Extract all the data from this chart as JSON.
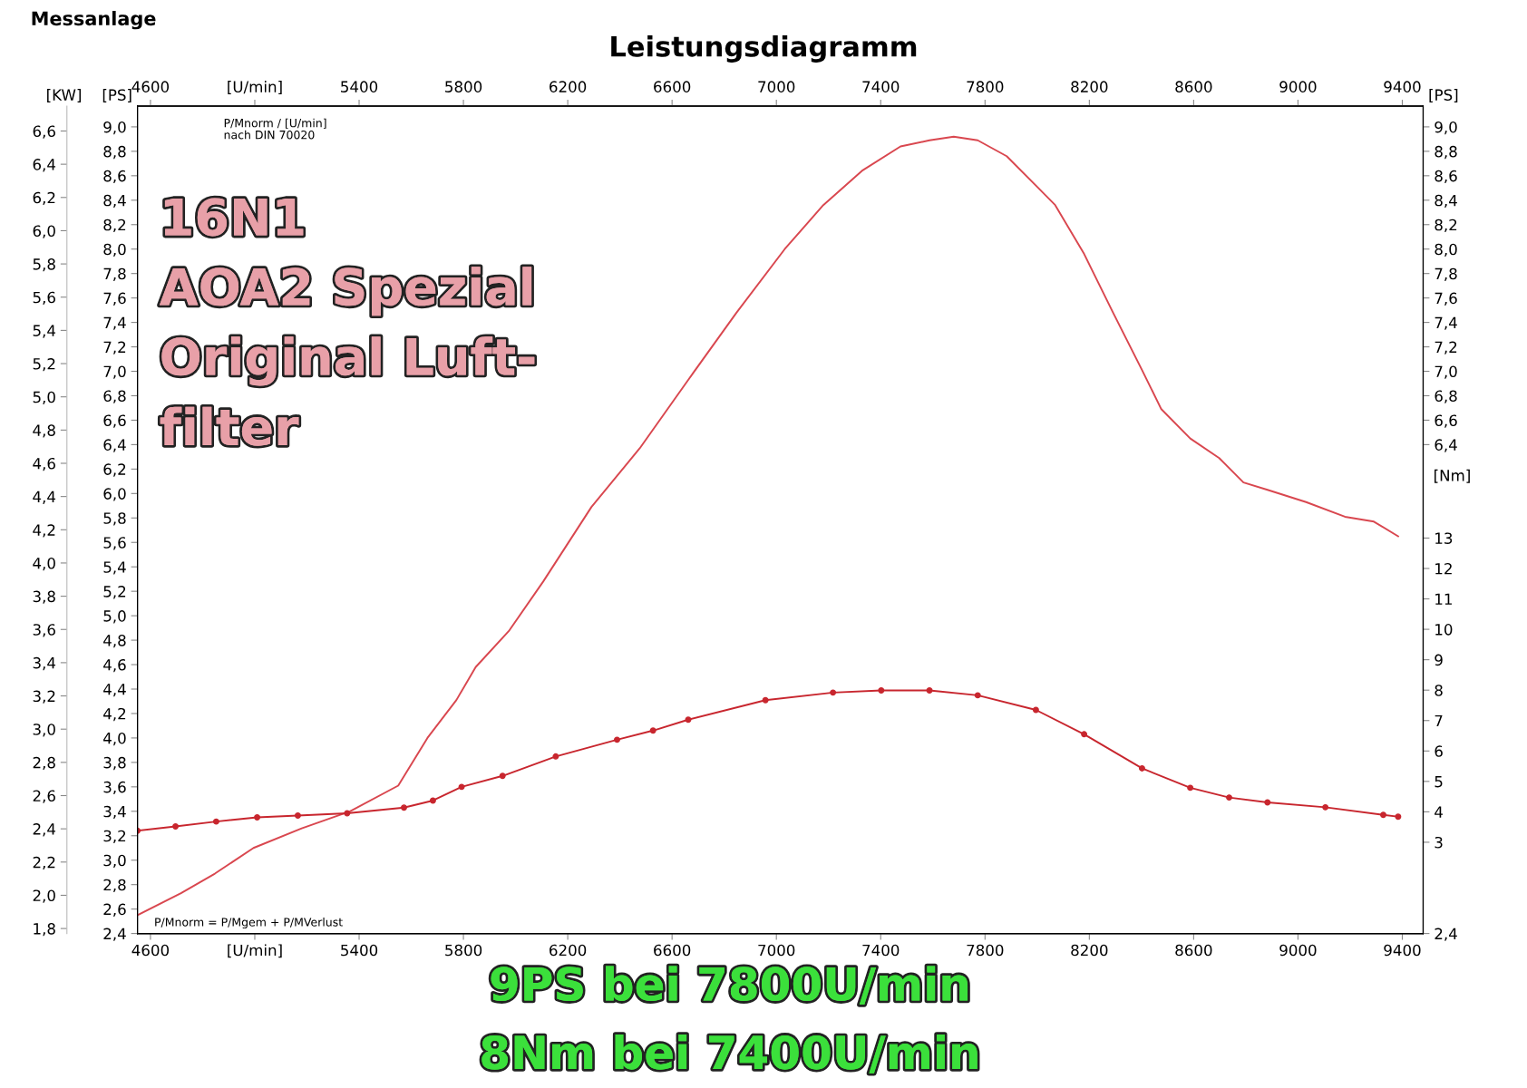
{
  "chart_data": {
    "type": "line",
    "title": "Leistungsdiagramm",
    "ylabel": "[PS]",
    "y2label": "[Nm]",
    "y3label": "[KW]",
    "xlim": [
      4550,
      9480
    ],
    "ylim": [
      2.4,
      9.17
    ],
    "y2lim": [
      0,
      27.2
    ],
    "y3lim": [
      1.77,
      6.75
    ],
    "x2lim": [
      4550,
      9480
    ],
    "xticks": [
      4600,
      {
        "value": 5000,
        "label": "[U/min]"
      },
      5400,
      5800,
      6200,
      6600,
      7000,
      7400,
      7800,
      8200,
      8600,
      9000,
      9400
    ],
    "x2ticks": [
      4600,
      {
        "value": 5000,
        "label": "[U/min]"
      },
      5400,
      5800,
      6200,
      6600,
      7000,
      7400,
      7800,
      8200,
      8600,
      9000,
      9400
    ],
    "yticks": [
      {
        "value": 2.4,
        "label": "2,4"
      },
      {
        "value": 2.6,
        "label": "2,6"
      },
      {
        "value": 2.8,
        "label": "2,8"
      },
      {
        "value": 3.0,
        "label": "3,0"
      },
      {
        "value": 3.2,
        "label": "3,2"
      },
      {
        "value": 3.4,
        "label": "3,4"
      },
      {
        "value": 3.6,
        "label": "3,6"
      },
      {
        "value": 3.8,
        "label": "3,8"
      },
      {
        "value": 4.0,
        "label": "4,0"
      },
      {
        "value": 4.2,
        "label": "4,2"
      },
      {
        "value": 4.4,
        "label": "4,4"
      },
      {
        "value": 4.6,
        "label": "4,6"
      },
      {
        "value": 4.8,
        "label": "4,8"
      },
      {
        "value": 5.0,
        "label": "5,0"
      },
      {
        "value": 5.2,
        "label": "5,2"
      },
      {
        "value": 5.4,
        "label": "5,4"
      },
      {
        "value": 5.6,
        "label": "5,6"
      },
      {
        "value": 5.8,
        "label": "5,8"
      },
      {
        "value": 6.0,
        "label": "6,0"
      },
      {
        "value": 6.2,
        "label": "6,2"
      },
      {
        "value": 6.4,
        "label": "6,4"
      },
      {
        "value": 6.6,
        "label": "6,6"
      },
      {
        "value": 6.8,
        "label": "6,8"
      },
      {
        "value": 7.0,
        "label": "7,0"
      },
      {
        "value": 7.2,
        "label": "7,2"
      },
      {
        "value": 7.4,
        "label": "7,4"
      },
      {
        "value": 7.6,
        "label": "7,6"
      },
      {
        "value": 7.8,
        "label": "7,8"
      },
      {
        "value": 8.0,
        "label": "8,0"
      },
      {
        "value": 8.2,
        "label": "8,2"
      },
      {
        "value": 8.4,
        "label": "8,4"
      },
      {
        "value": 8.6,
        "label": "8,6"
      },
      {
        "value": 8.8,
        "label": "8,8"
      },
      {
        "value": 9.0,
        "label": "9,0"
      }
    ],
    "y3ticks": [
      {
        "value": 1.8,
        "label": "1,8"
      },
      {
        "value": 2.0,
        "label": "2,0"
      },
      {
        "value": 2.2,
        "label": "2,2"
      },
      {
        "value": 2.4,
        "label": "2,4"
      },
      {
        "value": 2.6,
        "label": "2,6"
      },
      {
        "value": 2.8,
        "label": "2,8"
      },
      {
        "value": 3.0,
        "label": "3,0"
      },
      {
        "value": 3.2,
        "label": "3,2"
      },
      {
        "value": 3.4,
        "label": "3,4"
      },
      {
        "value": 3.6,
        "label": "3,6"
      },
      {
        "value": 3.8,
        "label": "3,8"
      },
      {
        "value": 4.0,
        "label": "4,0"
      },
      {
        "value": 4.2,
        "label": "4,2"
      },
      {
        "value": 4.4,
        "label": "4,4"
      },
      {
        "value": 4.6,
        "label": "4,6"
      },
      {
        "value": 4.8,
        "label": "4,8"
      },
      {
        "value": 5.0,
        "label": "5,0"
      },
      {
        "value": 5.2,
        "label": "5,2"
      },
      {
        "value": 5.4,
        "label": "5,4"
      },
      {
        "value": 5.6,
        "label": "5,6"
      },
      {
        "value": 5.8,
        "label": "5,8"
      },
      {
        "value": 6.0,
        "label": "6,0"
      },
      {
        "value": 6.2,
        "label": "6,2"
      },
      {
        "value": 6.4,
        "label": "6,4"
      },
      {
        "value": 6.6,
        "label": "6,6"
      }
    ],
    "y2ticks": [
      3,
      4,
      5,
      6,
      7,
      8,
      9,
      10,
      11,
      12,
      13
    ],
    "series": [
      {
        "axis": "y",
        "color": "#d9474f",
        "marker": "none",
        "line_style": "solid",
        "x": [
          4550,
          4717,
          4847,
          4995,
          5180,
          5365,
          5550,
          5662,
          5773,
          5847,
          5976,
          6106,
          6291,
          6476,
          6662,
          6847,
          7032,
          7180,
          7328,
          7476,
          7587,
          7680,
          7772,
          7883,
          7995,
          8069,
          8180,
          8291,
          8402,
          8476,
          8587,
          8698,
          8791,
          8883,
          9031,
          9180,
          9291,
          9384
        ],
        "values": [
          2.55,
          2.73,
          2.89,
          3.1,
          3.26,
          3.4,
          3.61,
          4.0,
          4.31,
          4.58,
          4.88,
          5.28,
          5.89,
          6.37,
          6.93,
          7.48,
          8.0,
          8.36,
          8.64,
          8.84,
          8.89,
          8.92,
          8.89,
          8.76,
          8.52,
          8.36,
          7.96,
          7.48,
          7.01,
          6.69,
          6.45,
          6.29,
          6.09,
          6.03,
          5.93,
          5.81,
          5.77,
          5.65
        ]
      },
      {
        "axis": "y2",
        "color": "#c8262e",
        "marker": "circle",
        "line_style": "solid",
        "x": [
          4550,
          4696,
          4852,
          5009,
          5165,
          5354,
          5572,
          5683,
          5793,
          5950,
          6154,
          6389,
          6527,
          6662,
          6958,
          7217,
          7402,
          7587,
          7772,
          7995,
          8180,
          8402,
          8587,
          8736,
          8883,
          9105,
          9327,
          9384
        ],
        "values": [
          3.38,
          3.52,
          3.68,
          3.82,
          3.88,
          3.95,
          4.14,
          4.37,
          4.82,
          5.18,
          5.82,
          6.37,
          6.67,
          7.03,
          7.67,
          7.92,
          7.99,
          7.99,
          7.83,
          7.35,
          6.55,
          5.43,
          4.79,
          4.47,
          4.31,
          4.15,
          3.9,
          3.84
        ]
      }
    ],
    "annotations": [
      "Messanlage",
      "P/Mnorm / [U/min]\nnach DIN 70020",
      "16N1\nAOA2 Spezial\nOriginal Luft-\nfilter",
      "P/Mnorm = P/Mgem + P/MVerlust",
      "9PS bei 7800U/min",
      "8Nm bei 7400U/min",
      "[PS]"
    ],
    "grid": false,
    "legend": false
  }
}
